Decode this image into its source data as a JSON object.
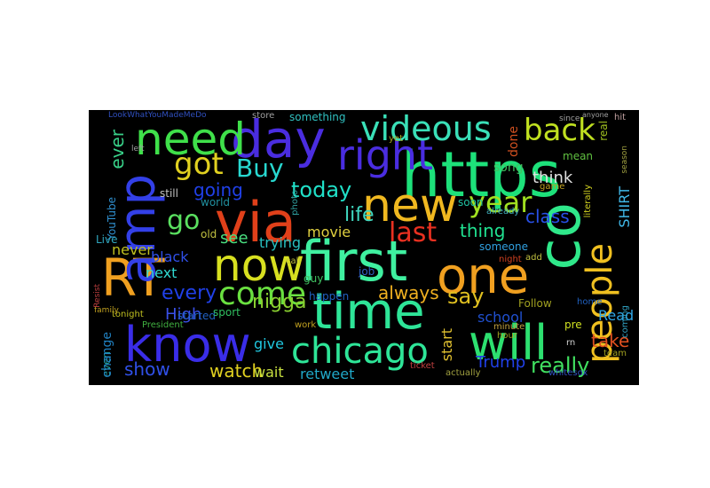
{
  "colors": {
    "background": "#000000",
    "page": "#ffffff"
  },
  "words": [
    {
      "text": "https",
      "color": "#1de17a"
    },
    {
      "text": "co",
      "color": "#2fe88a"
    },
    {
      "text": "via",
      "color": "#e0401a"
    },
    {
      "text": "first",
      "color": "#3ff0a0"
    },
    {
      "text": "new",
      "color": "#f0b820"
    },
    {
      "text": "time",
      "color": "#2ee598"
    },
    {
      "text": "day",
      "color": "#4a2de0"
    },
    {
      "text": "need",
      "color": "#3fe04a"
    },
    {
      "text": "know",
      "color": "#3a2de8"
    },
    {
      "text": "RT",
      "color": "#f0a020"
    },
    {
      "text": "amp",
      "color": "#3340e8"
    },
    {
      "text": "now",
      "color": "#d8e020"
    },
    {
      "text": "one",
      "color": "#f0a020"
    },
    {
      "text": "will",
      "color": "#2de070"
    },
    {
      "text": "right",
      "color": "#4a2de0"
    },
    {
      "text": "chicago",
      "color": "#2ee598"
    },
    {
      "text": "people",
      "color": "#f0c020"
    },
    {
      "text": "videous",
      "color": "#3ae0b8"
    },
    {
      "text": "back",
      "color": "#c0e020"
    },
    {
      "text": "come",
      "color": "#6ae040"
    },
    {
      "text": "got",
      "color": "#e0d020"
    },
    {
      "text": "go",
      "color": "#5ae060"
    },
    {
      "text": "last",
      "color": "#e83020"
    },
    {
      "text": "year",
      "color": "#a0e020"
    },
    {
      "text": "Buy",
      "color": "#28d8d0"
    },
    {
      "text": "today",
      "color": "#20e0c8"
    },
    {
      "text": "going",
      "color": "#2040e8"
    },
    {
      "text": "life",
      "color": "#40d8c0"
    },
    {
      "text": "thing",
      "color": "#20e090"
    },
    {
      "text": "say",
      "color": "#e0c020"
    },
    {
      "text": "watch",
      "color": "#e0d020"
    },
    {
      "text": "show",
      "color": "#3050e8"
    },
    {
      "text": "really",
      "color": "#40e060"
    },
    {
      "text": "Trump",
      "color": "#2040e8"
    },
    {
      "text": "take",
      "color": "#e05020"
    },
    {
      "text": "nigga",
      "color": "#8ad030"
    },
    {
      "text": "always",
      "color": "#f0b020"
    },
    {
      "text": "every",
      "color": "#2040e8"
    },
    {
      "text": "High",
      "color": "#3a50e8"
    },
    {
      "text": "see",
      "color": "#4ae080"
    },
    {
      "text": "trying",
      "color": "#28c0c0"
    },
    {
      "text": "movie",
      "color": "#e0d040"
    },
    {
      "text": "class",
      "color": "#2850e8"
    },
    {
      "text": "think",
      "color": "#e0e0e0"
    },
    {
      "text": "ever",
      "color": "#38d088"
    },
    {
      "text": "never",
      "color": "#c0c020"
    },
    {
      "text": "black",
      "color": "#3050e8"
    },
    {
      "text": "next",
      "color": "#30d8d0"
    },
    {
      "text": "give",
      "color": "#20c8e0"
    },
    {
      "text": "wait",
      "color": "#c8e040"
    },
    {
      "text": "retweet",
      "color": "#20a8c8"
    },
    {
      "text": "start",
      "color": "#e0c030"
    },
    {
      "text": "school",
      "color": "#2050d0"
    },
    {
      "text": "Read",
      "color": "#30a8e8"
    },
    {
      "text": "SHIRT",
      "color": "#40b8e8"
    },
    {
      "text": "song",
      "color": "#40c060"
    },
    {
      "text": "done",
      "color": "#d05020"
    },
    {
      "text": "something",
      "color": "#30c0c0"
    },
    {
      "text": "YouTube",
      "color": "#3090d0"
    },
    {
      "text": "Live",
      "color": "#30a8c0"
    },
    {
      "text": "even",
      "color": "#20a0a0"
    },
    {
      "text": "change",
      "color": "#2080c0"
    },
    {
      "text": "Follow",
      "color": "#a0a020"
    },
    {
      "text": "soon",
      "color": "#20c0a0"
    },
    {
      "text": "world",
      "color": "#2090a0"
    },
    {
      "text": "still",
      "color": "#c0c0c0"
    },
    {
      "text": "started",
      "color": "#2060c0"
    },
    {
      "text": "someone",
      "color": "#30a0e0"
    },
    {
      "text": "sport",
      "color": "#30c060"
    },
    {
      "text": "happen",
      "color": "#2060c0"
    },
    {
      "text": "coming",
      "color": "#30a0c0"
    },
    {
      "text": "pre",
      "color": "#d0e020"
    },
    {
      "text": "mean",
      "color": "#60c040"
    },
    {
      "text": "game",
      "color": "#c0a020"
    },
    {
      "text": "real",
      "color": "#a0c020"
    },
    {
      "text": "hit",
      "color": "#c0a0a0"
    },
    {
      "text": "old",
      "color": "#c0c040"
    },
    {
      "text": "guy",
      "color": "#40c060"
    },
    {
      "text": "job",
      "color": "#3060c0"
    },
    {
      "text": "night",
      "color": "#d04020"
    },
    {
      "text": "hour",
      "color": "#a0a020"
    },
    {
      "text": "store",
      "color": "#a0a0a0"
    },
    {
      "text": "team",
      "color": "#a0a020"
    },
    {
      "text": "home",
      "color": "#2060c0"
    },
    {
      "text": "ticket",
      "color": "#c04040"
    },
    {
      "text": "actually",
      "color": "#a0a040"
    },
    {
      "text": "whitesox",
      "color": "#3050c0"
    },
    {
      "text": "LookWhatYouMadeMeDo",
      "color": "#3050c0"
    },
    {
      "text": "President",
      "color": "#40b040"
    },
    {
      "text": "tonight",
      "color": "#c0c020"
    },
    {
      "text": "family",
      "color": "#c0a020"
    },
    {
      "text": "work",
      "color": "#c0a020"
    },
    {
      "text": "add",
      "color": "#c0c040"
    },
    {
      "text": "minute",
      "color": "#c0a040"
    },
    {
      "text": "rn",
      "color": "#d0d0d0"
    },
    {
      "text": "literally",
      "color": "#d0d020"
    },
    {
      "text": "call",
      "color": "#c0c040"
    },
    {
      "text": "photo",
      "color": "#30a0a0"
    },
    {
      "text": "already",
      "color": "#40b0c0"
    },
    {
      "text": "yet",
      "color": "#a0a020"
    },
    {
      "text": "left",
      "color": "#a0a0a0"
    },
    {
      "text": "since",
      "color": "#a0a0a0"
    },
    {
      "text": "anyone",
      "color": "#a0a0a0"
    },
    {
      "text": "Resist",
      "color": "#c04040"
    },
    {
      "text": "season",
      "color": "#a0a040"
    }
  ]
}
